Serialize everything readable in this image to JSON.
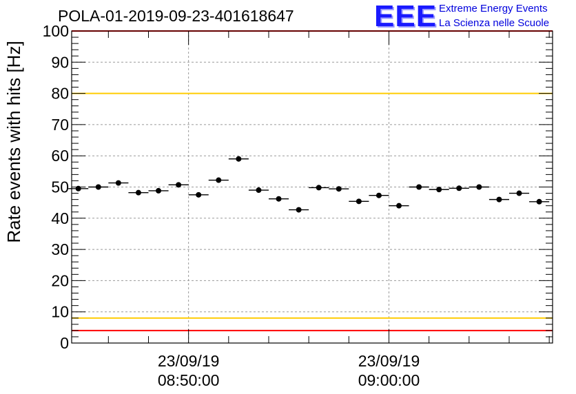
{
  "title": "POLA-01-2019-09-23-401618647",
  "logo": {
    "mark": "EEE",
    "line1": "Extreme Energy Events",
    "line2": "La Scienza nelle Scuole"
  },
  "chart_data": {
    "type": "scatter",
    "title": "POLA-01-2019-09-23-401618647",
    "ylabel": "Rate events with hits [Hz]",
    "xlabel": "",
    "ylim": [
      0,
      100
    ],
    "yticks": [
      "0",
      "10",
      "20",
      "30",
      "40",
      "50",
      "60",
      "70",
      "80",
      "90",
      "100"
    ],
    "xlim": [
      "23/09/19 08:44:10",
      "23/09/19 09:08:10"
    ],
    "xticks": [
      {
        "date": "23/09/19",
        "time": "08:50:00"
      },
      {
        "date": "23/09/19",
        "time": "09:00:00"
      }
    ],
    "grid": true,
    "bin_minutes": 1,
    "series": [
      {
        "x": [
          "08:44:30",
          "08:45:30",
          "08:46:30",
          "08:47:30",
          "08:48:30",
          "08:49:30",
          "08:50:30",
          "08:51:30",
          "08:52:30",
          "08:53:30",
          "08:54:30",
          "08:55:30",
          "08:56:30",
          "08:57:30",
          "08:58:30",
          "08:59:30",
          "09:00:30",
          "09:01:30",
          "09:02:30",
          "09:03:30",
          "09:04:30",
          "09:05:30",
          "09:06:30",
          "09:07:30"
        ],
        "values": [
          49.5,
          50.0,
          51.3,
          48.2,
          48.8,
          50.7,
          47.5,
          52.2,
          59.0,
          49.0,
          46.2,
          42.7,
          49.8,
          49.4,
          45.4,
          47.3,
          44.0,
          50.0,
          49.2,
          49.6,
          50.0,
          46.0,
          48.0,
          45.3
        ]
      }
    ],
    "reference_lines": [
      {
        "value": 100,
        "color": "#ff0000"
      },
      {
        "value": 80,
        "color": "#ffcc00"
      },
      {
        "value": 8,
        "color": "#ffcc00"
      },
      {
        "value": 4,
        "color": "#ff0000"
      }
    ]
  }
}
